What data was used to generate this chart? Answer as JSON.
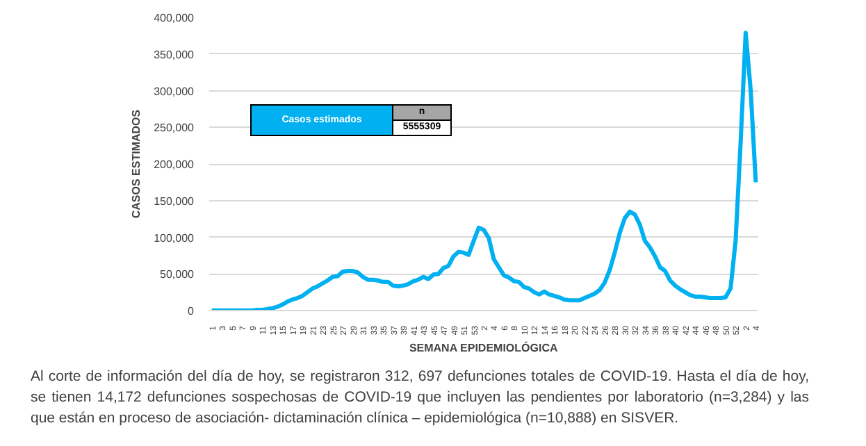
{
  "chart_data": {
    "type": "line",
    "xlabel": "SEMANA EPIDEMIOLÓGICA",
    "ylabel": "CASOS ESTIMADOS",
    "categories": [
      "1",
      null,
      "3",
      null,
      "5",
      null,
      "7",
      null,
      "9",
      null,
      "11",
      null,
      "13",
      null,
      "15",
      null,
      "17",
      null,
      "19",
      null,
      "21",
      null,
      "23",
      null,
      "25",
      null,
      "27",
      null,
      "29",
      null,
      "31",
      null,
      "33",
      null,
      "35",
      null,
      "37",
      null,
      "39",
      null,
      "41",
      null,
      "43",
      null,
      "45",
      null,
      "47",
      null,
      "49",
      null,
      "51",
      null,
      "53",
      null,
      "2",
      null,
      "4",
      null,
      "6",
      null,
      "8",
      null,
      "10",
      null,
      "12",
      null,
      "14",
      null,
      "16",
      null,
      "18",
      null,
      "20",
      null,
      "22",
      null,
      "24",
      null,
      "26",
      null,
      "28",
      null,
      "30",
      null,
      "32",
      null,
      "34",
      null,
      "36",
      null,
      "38",
      null,
      "40",
      null,
      "42",
      null,
      "44",
      null,
      "46",
      null,
      "48",
      null,
      "50",
      null,
      "52",
      null,
      "2",
      null,
      "4"
    ],
    "series": [
      {
        "color": "#00b0f0",
        "values": [
          0,
          0,
          0,
          0,
          0,
          0,
          0,
          0,
          0,
          1000,
          1000,
          2000,
          3000,
          5000,
          8000,
          12000,
          15000,
          17000,
          20000,
          25000,
          30000,
          33000,
          37000,
          41000,
          46000,
          47000,
          53000,
          54000,
          54000,
          52000,
          46000,
          42000,
          42000,
          41000,
          39000,
          39000,
          34000,
          33000,
          34000,
          36000,
          40000,
          42000,
          46000,
          43000,
          49000,
          50000,
          58000,
          61000,
          74000,
          80000,
          79000,
          76000,
          95000,
          113000,
          110000,
          99000,
          70000,
          59000,
          48000,
          45000,
          40000,
          39000,
          32000,
          30000,
          25000,
          22000,
          26000,
          22000,
          20000,
          18000,
          15000,
          14000,
          14000,
          14000,
          17000,
          20000,
          23000,
          28000,
          38000,
          55000,
          79000,
          106000,
          126000,
          135000,
          131000,
          117000,
          95000,
          86000,
          74000,
          59000,
          54000,
          41000,
          34000,
          29000,
          25000,
          21000,
          19000,
          19000,
          18000,
          17000,
          17000,
          17000,
          18000,
          30000,
          95000,
          230000,
          379000,
          300000,
          175000
        ]
      }
    ],
    "ylim": [
      0,
      400000
    ],
    "yticks": [
      {
        "value": 0,
        "label": "0"
      },
      {
        "value": 50000,
        "label": "50,000"
      },
      {
        "value": 100000,
        "label": "100,000"
      },
      {
        "value": 150000,
        "label": "150,000"
      },
      {
        "value": 200000,
        "label": "200,000"
      },
      {
        "value": 250000,
        "label": "250,000"
      },
      {
        "value": 300000,
        "label": "300,000"
      },
      {
        "value": 350000,
        "label": "350,000"
      },
      {
        "value": 400000,
        "label": "400,000"
      }
    ],
    "grid": "y",
    "annotations": [
      "Casos estimados",
      "n",
      "5555309",
      "Al corte de información del día de hoy, se registraron 312, 697 defunciones totales de COVID-19. Hasta el día de hoy, se tienen 14,172 defunciones sospechosas de COVID-19 que incluyen las pendientes por laboratorio (n=3,284) y las que están en proceso de asociación- dictaminación clínica – epidemiológica (n=10,888) en SISVER."
    ]
  }
}
